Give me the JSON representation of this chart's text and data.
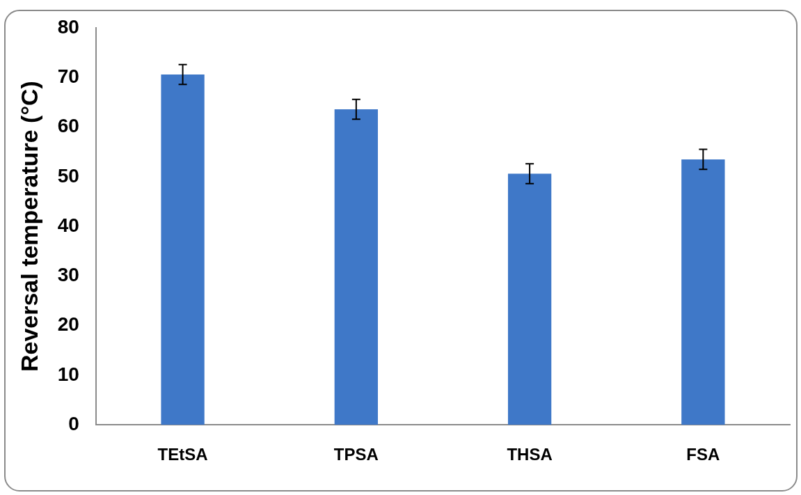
{
  "chart_data": {
    "type": "bar",
    "ylabel": "Reversal temperature (°C)",
    "categories": [
      "TEtSA",
      "TPSA",
      "THSA",
      "FSA"
    ],
    "values": [
      70.6,
      63.6,
      50.6,
      53.5
    ],
    "errors": [
      2.0,
      2.0,
      2.0,
      2.0
    ],
    "color": "#3f78c8",
    "ylim": [
      0,
      80
    ],
    "yticks": [
      0,
      10,
      20,
      30,
      40,
      50,
      60,
      70,
      80
    ],
    "grid": false,
    "legend": false
  }
}
